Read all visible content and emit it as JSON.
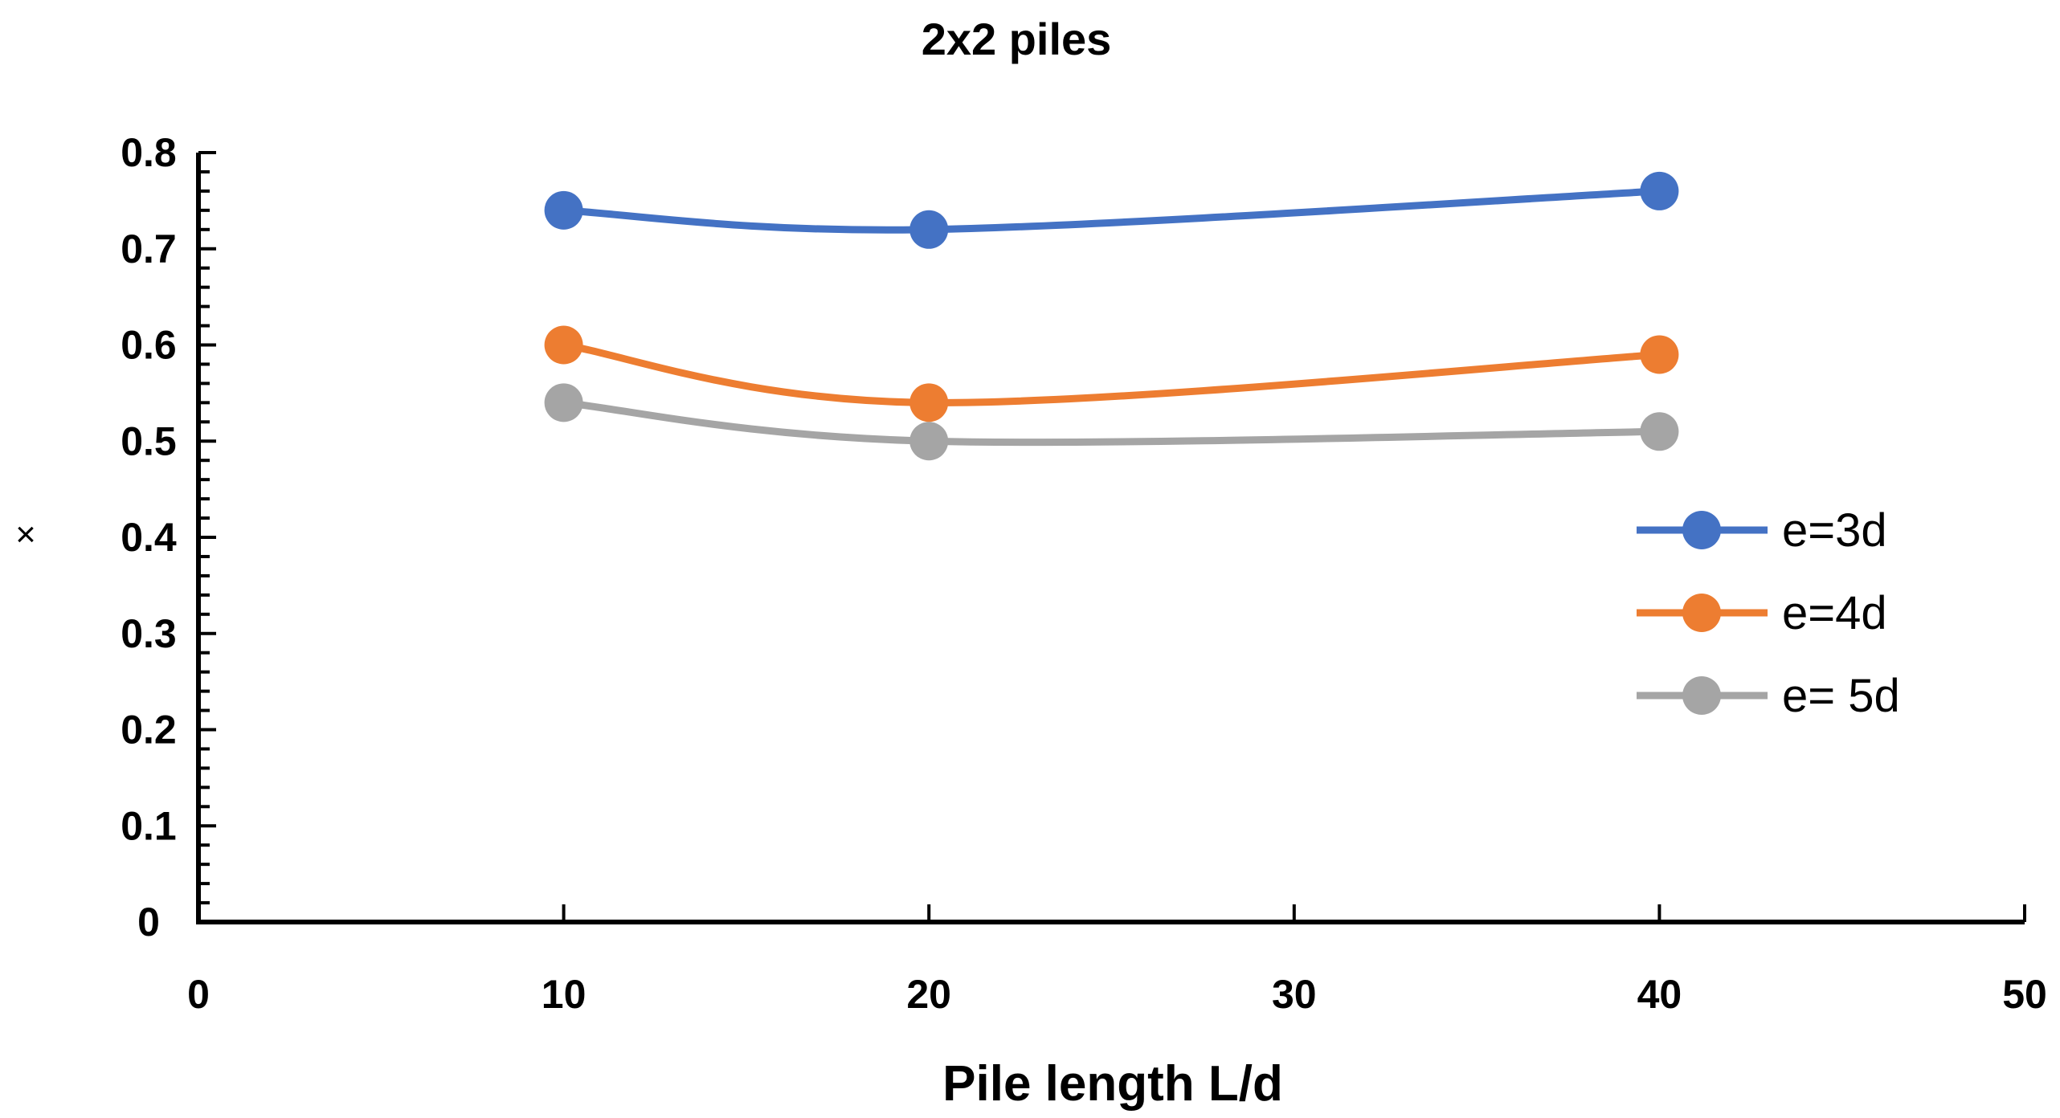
{
  "chart_data": {
    "type": "line",
    "title": "2x2 piles",
    "xlabel": "Pile length L/d",
    "ylabel": "×",
    "xlim": [
      0,
      50
    ],
    "ylim": [
      0,
      0.8
    ],
    "x_ticks": [
      "0",
      "10",
      "20",
      "30",
      "40",
      "50"
    ],
    "y_ticks": [
      "0",
      "0.1",
      "0.2",
      "0.3",
      "0.4",
      "0.5",
      "0.6",
      "0.7",
      "0.8"
    ],
    "x": [
      10,
      20,
      40
    ],
    "series": [
      {
        "name": "e=3d",
        "values": [
          0.74,
          0.72,
          0.76
        ],
        "color": "#4472C4"
      },
      {
        "name": "e=4d",
        "values": [
          0.6,
          0.54,
          0.59
        ],
        "color": "#ED7D31"
      },
      {
        "name": "e= 5d",
        "values": [
          0.54,
          0.5,
          0.51
        ],
        "color": "#A5A5A5"
      }
    ],
    "grid": false,
    "legend_position": "right"
  }
}
